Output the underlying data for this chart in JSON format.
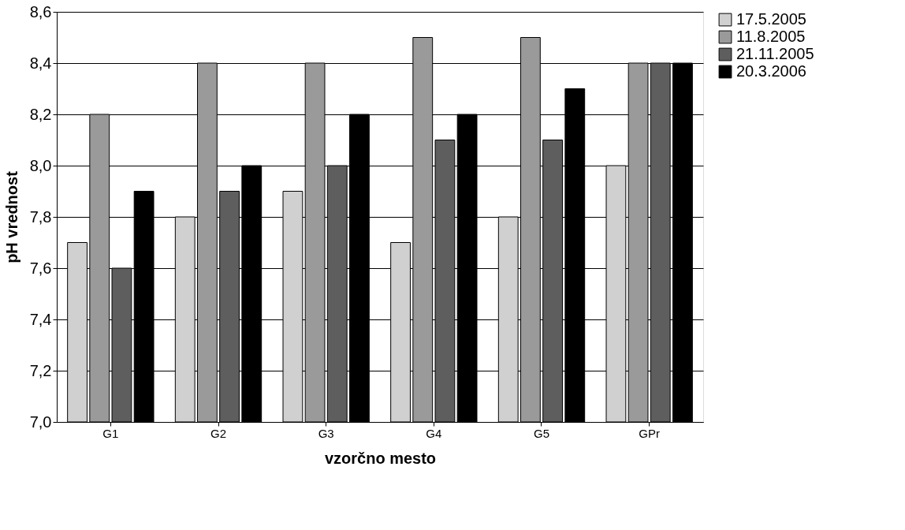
{
  "chart_data": {
    "type": "bar",
    "xlabel": "vzorčno mesto",
    "ylabel": "pH vrednost",
    "categories": [
      "G1",
      "G2",
      "G3",
      "G4",
      "G5",
      "GPr"
    ],
    "series": [
      {
        "name": "17.5.2005",
        "color": "#d0d0d0",
        "values": [
          7.7,
          7.8,
          7.9,
          7.7,
          7.8,
          8.0
        ]
      },
      {
        "name": "11.8.2005",
        "color": "#9a9a9a",
        "values": [
          8.2,
          8.4,
          8.4,
          8.5,
          8.5,
          8.4
        ]
      },
      {
        "name": "21.11.2005",
        "color": "#5e5e5e",
        "values": [
          7.6,
          7.9,
          8.0,
          8.1,
          8.1,
          8.4
        ]
      },
      {
        "name": "20.3.2006",
        "color": "#000000",
        "values": [
          7.9,
          8.0,
          8.2,
          8.2,
          8.3,
          8.4
        ]
      }
    ],
    "ylim": [
      7.0,
      8.6
    ],
    "yticks": [
      {
        "value": 7.0,
        "label": "7,0"
      },
      {
        "value": 7.2,
        "label": "7,2"
      },
      {
        "value": 7.4,
        "label": "7,4"
      },
      {
        "value": 7.6,
        "label": "7,6"
      },
      {
        "value": 7.8,
        "label": "7,8"
      },
      {
        "value": 8.0,
        "label": "8,0"
      },
      {
        "value": 8.2,
        "label": "8,2"
      },
      {
        "value": 8.4,
        "label": "8,4"
      },
      {
        "value": 8.6,
        "label": "8,6"
      }
    ],
    "grid": "y",
    "legend": "right"
  }
}
